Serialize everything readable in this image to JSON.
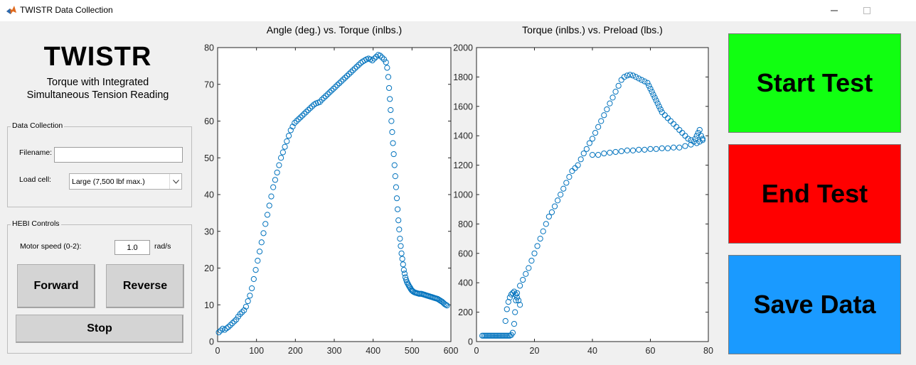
{
  "window": {
    "title": "TWISTR Data Collection",
    "icon": "matlab-icon",
    "controls": [
      "minimize-icon",
      "maximize-icon"
    ]
  },
  "brand": {
    "title": "TWISTR",
    "subtitle_line1": "Torque with Integrated",
    "subtitle_line2": "Simultaneous Tension Reading"
  },
  "data_collection": {
    "legend": "Data Collection",
    "filename_label": "Filename:",
    "filename_value": "",
    "loadcell_label": "Load cell:",
    "loadcell_selected": "Large (7,500 lbf max.)"
  },
  "hebi_controls": {
    "legend": "HEBI Controls",
    "speed_label": "Motor speed (0-2):",
    "speed_value": "1.0",
    "speed_unit": "rad/s",
    "forward_label": "Forward",
    "reverse_label": "Reverse",
    "stop_label": "Stop"
  },
  "actions": {
    "start_label": "Start Test",
    "start_color": "#11ff11",
    "end_label": "End Test",
    "end_color": "#ff0000",
    "save_label": "Save Data",
    "save_color": "#1a9aff"
  },
  "chart_data": [
    {
      "type": "scatter",
      "title": "Angle (deg.) vs. Torque (inlbs.)",
      "xlabel": "",
      "ylabel": "",
      "xlim": [
        0,
        600
      ],
      "ylim": [
        0,
        80
      ],
      "xticks": [
        0,
        100,
        200,
        300,
        400,
        500,
        600
      ],
      "yticks": [
        0,
        10,
        20,
        30,
        40,
        50,
        60,
        70,
        80
      ],
      "grid": false,
      "marker": "open-circle",
      "color": "#0072bd",
      "x": [
        3,
        8,
        13,
        18,
        23,
        28,
        33,
        38,
        43,
        48,
        53,
        58,
        63,
        68,
        73,
        78,
        83,
        88,
        93,
        98,
        103,
        108,
        113,
        118,
        123,
        128,
        133,
        138,
        143,
        148,
        153,
        158,
        163,
        168,
        173,
        178,
        183,
        188,
        193,
        198,
        203,
        208,
        213,
        218,
        223,
        228,
        233,
        238,
        243,
        248,
        253,
        258,
        263,
        268,
        273,
        278,
        283,
        288,
        293,
        298,
        303,
        308,
        313,
        318,
        323,
        328,
        333,
        338,
        343,
        348,
        353,
        358,
        363,
        368,
        373,
        378,
        383,
        388,
        393,
        398,
        403,
        408,
        413,
        418,
        423,
        428,
        433,
        436,
        439,
        441,
        443,
        445,
        447,
        449,
        451,
        453,
        455,
        457,
        459,
        461,
        463,
        465,
        467,
        469,
        471,
        473,
        475,
        477,
        479,
        481,
        483,
        485,
        487,
        489,
        491,
        493,
        495,
        497,
        499,
        501,
        503,
        506,
        509,
        512,
        515,
        518,
        521,
        524,
        527,
        530,
        533,
        536,
        539,
        542,
        545,
        548,
        551,
        554,
        557,
        560,
        563,
        566,
        569,
        572,
        575,
        578,
        581,
        584,
        587,
        590
      ],
      "y": [
        2.5,
        3,
        3.5,
        3.2,
        3.6,
        4,
        4.5,
        5,
        5.5,
        6,
        6.8,
        7.5,
        8,
        8.5,
        9.5,
        11,
        12.5,
        14.5,
        17,
        19.5,
        22,
        24.5,
        27,
        29.5,
        32,
        34.5,
        37,
        39.5,
        42,
        44,
        46,
        48,
        50,
        51.5,
        53,
        54.5,
        56,
        57.5,
        58.5,
        59.5,
        60,
        60.5,
        61,
        61.5,
        62,
        62.5,
        63,
        63.5,
        64,
        64.5,
        64.8,
        65,
        65.2,
        65.8,
        66.3,
        66.8,
        67.3,
        67.8,
        68.3,
        68.8,
        69.3,
        69.8,
        70.3,
        70.8,
        71.3,
        71.8,
        72.3,
        72.8,
        73.3,
        73.8,
        74.3,
        74.8,
        75.3,
        75.8,
        76.2,
        76.5,
        76.8,
        77,
        76.8,
        76.5,
        77,
        77.5,
        78,
        77.8,
        77.3,
        76.8,
        76,
        74.5,
        72,
        69,
        66,
        63,
        60,
        57,
        54,
        51,
        48,
        45,
        42,
        39,
        36,
        33,
        30.5,
        28,
        26,
        24,
        22.5,
        21,
        19.5,
        18.5,
        17.5,
        16.8,
        16.2,
        15.8,
        15.4,
        15,
        14.7,
        14.3,
        14,
        13.8,
        13.6,
        13.4,
        13.3,
        13.2,
        13.1,
        13,
        13,
        13,
        12.9,
        12.8,
        12.7,
        12.6,
        12.5,
        12.4,
        12.3,
        12.2,
        12.1,
        12,
        11.9,
        11.8,
        11.7,
        11.6,
        11.4,
        11.2,
        11,
        10.8,
        10.5,
        10.2,
        10,
        9.8
      ]
    },
    {
      "type": "scatter",
      "title": "Torque (inlbs.) vs. Preload (lbs.)",
      "xlabel": "",
      "ylabel": "",
      "xlim": [
        0,
        80
      ],
      "ylim": [
        0,
        2000
      ],
      "xticks": [
        0,
        20,
        40,
        60,
        80
      ],
      "yticks": [
        0,
        200,
        400,
        600,
        800,
        1000,
        1200,
        1400,
        1600,
        1800,
        2000
      ],
      "grid": false,
      "marker": "open-circle",
      "color": "#0072bd",
      "x": [
        2,
        2.5,
        3,
        3.5,
        4,
        4.5,
        5,
        5.5,
        6,
        6.5,
        7,
        7.5,
        8,
        8.5,
        9,
        9.5,
        10,
        10.5,
        11,
        11.5,
        12,
        12.5,
        13,
        13.3,
        13.6,
        14,
        15,
        16,
        17,
        18,
        19,
        20,
        21,
        22,
        23,
        24,
        25,
        26,
        27,
        28,
        29,
        30,
        31,
        32,
        33,
        34,
        35,
        36,
        37,
        38,
        39,
        40,
        41,
        42,
        43,
        44,
        45,
        46,
        47,
        48,
        49,
        50,
        51,
        52,
        53,
        54,
        55,
        56,
        57,
        58,
        59,
        59.5,
        60,
        60.5,
        61,
        61.5,
        62,
        62.5,
        63,
        63.5,
        64,
        65,
        66,
        67,
        68,
        69,
        70,
        71,
        72,
        73,
        74,
        75,
        75.5,
        76,
        76.5,
        77,
        77.5,
        78,
        10,
        10.5,
        11,
        11.5,
        12,
        12.5,
        13,
        13.5,
        14,
        14.5,
        15,
        40,
        42,
        44,
        46,
        48,
        50,
        52,
        54,
        56,
        58,
        60,
        62,
        64,
        66,
        68,
        70,
        72,
        74,
        76,
        77,
        78
      ],
      "y": [
        40,
        40,
        40,
        40,
        40,
        40,
        40,
        40,
        40,
        40,
        40,
        40,
        40,
        40,
        40,
        40,
        40,
        40,
        40,
        40,
        45,
        60,
        120,
        200,
        280,
        330,
        380,
        420,
        460,
        500,
        550,
        600,
        650,
        700,
        750,
        800,
        850,
        880,
        920,
        960,
        1000,
        1040,
        1080,
        1120,
        1160,
        1180,
        1200,
        1240,
        1280,
        1310,
        1350,
        1380,
        1420,
        1460,
        1500,
        1540,
        1580,
        1620,
        1660,
        1700,
        1740,
        1780,
        1800,
        1810,
        1815,
        1810,
        1800,
        1790,
        1780,
        1770,
        1760,
        1740,
        1720,
        1700,
        1680,
        1660,
        1640,
        1620,
        1600,
        1580,
        1560,
        1540,
        1520,
        1500,
        1480,
        1460,
        1440,
        1420,
        1400,
        1380,
        1370,
        1360,
        1380,
        1400,
        1420,
        1440,
        1400,
        1380,
        140,
        220,
        270,
        300,
        320,
        330,
        340,
        320,
        300,
        280,
        250,
        1270,
        1270,
        1280,
        1285,
        1290,
        1295,
        1300,
        1300,
        1305,
        1305,
        1310,
        1310,
        1315,
        1315,
        1320,
        1320,
        1330,
        1340,
        1350,
        1360,
        1370
      ]
    }
  ]
}
